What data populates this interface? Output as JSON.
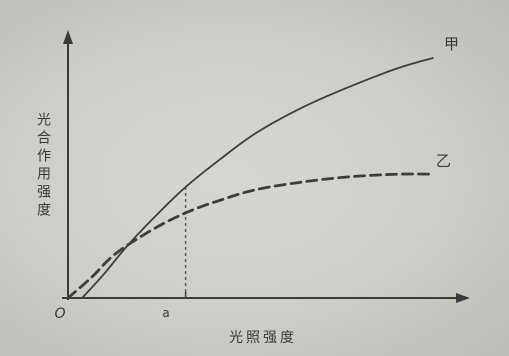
{
  "chart_data": {
    "type": "line",
    "xlabel": "光照强度",
    "ylabel": "光合作用强度",
    "origin_label": "O",
    "x_tick_label": "a",
    "x_tick_value": 1,
    "xlim": [
      0,
      3.35
    ],
    "ylim": [
      0,
      1.0
    ],
    "series": [
      {
        "name": "甲",
        "style": "solid",
        "x": [
          0.12,
          0.3,
          0.5,
          0.75,
          1.0,
          1.3,
          1.6,
          2.0,
          2.4,
          2.8,
          3.1
        ],
        "y": [
          0.0,
          0.09,
          0.2,
          0.32,
          0.43,
          0.54,
          0.64,
          0.74,
          0.82,
          0.89,
          0.93
        ]
      },
      {
        "name": "乙",
        "style": "dashed",
        "x": [
          0.0,
          0.2,
          0.4,
          0.7,
          1.0,
          1.3,
          1.6,
          2.0,
          2.4,
          2.8,
          3.1
        ],
        "y": [
          0.0,
          0.08,
          0.17,
          0.26,
          0.33,
          0.38,
          0.42,
          0.45,
          0.47,
          0.48,
          0.48
        ]
      }
    ],
    "colors": {
      "axis": "#3a3a3a",
      "line": "#3d3d3d",
      "background": "#d3d1cc"
    }
  }
}
